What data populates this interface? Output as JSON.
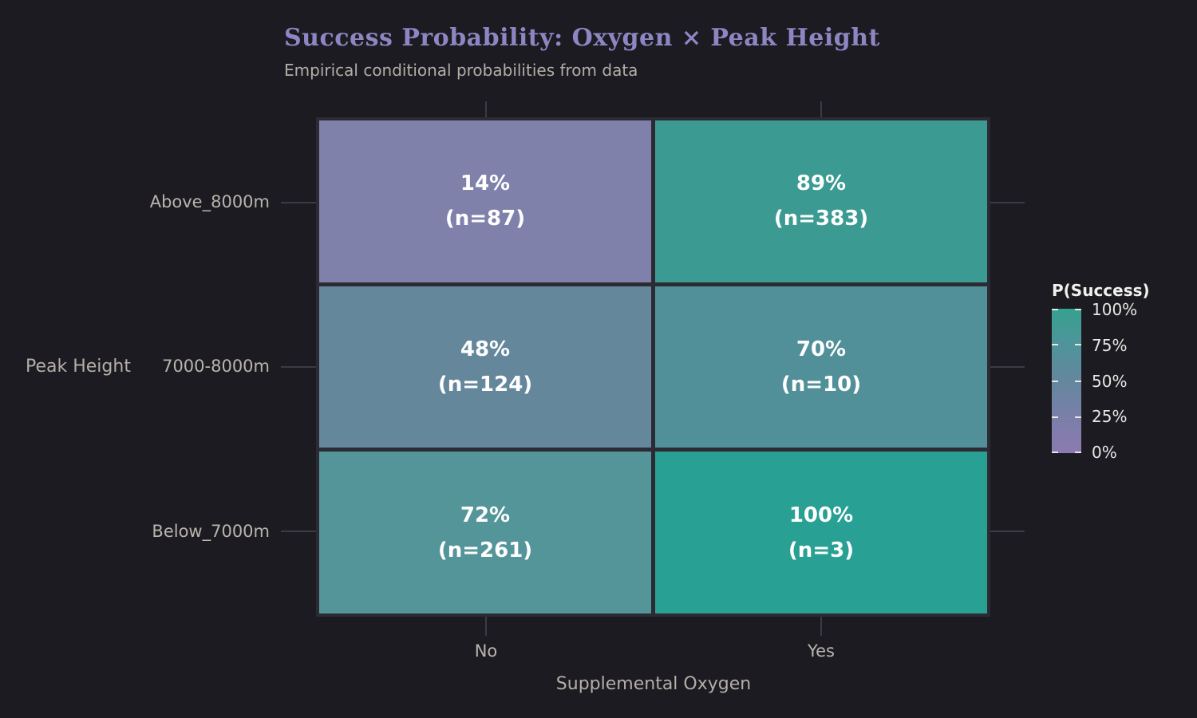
{
  "title": "Success Probability: Oxygen × Peak Height",
  "subtitle": "Empirical conditional probabilities from data",
  "colors": {
    "background": "#1c1b22",
    "gridline": "#3c3b43",
    "cell_border": "#2c2b33",
    "title": "#8d86c2",
    "subtitle": "#b3aea6",
    "axis_text": "#b9b4ac",
    "cell_text": "#ffffff"
  },
  "chart_data": {
    "type": "heatmap",
    "title": "Success Probability: Oxygen × Peak Height",
    "subtitle": "Empirical conditional probabilities from data",
    "xlabel": "Supplemental Oxygen",
    "ylabel": "Peak Height",
    "x_categories": [
      "No",
      "Yes"
    ],
    "y_categories": [
      "Above_8000m",
      "7000-8000m",
      "Below_7000m"
    ],
    "grid": "faint tick segments at category positions, panel margins only",
    "cells": [
      {
        "row": "Above_8000m",
        "col": "No",
        "pct": 14,
        "n": 87,
        "label": "14%",
        "sublabel": "(n=87)",
        "color": "#8081ab"
      },
      {
        "row": "Above_8000m",
        "col": "Yes",
        "pct": 89,
        "n": 383,
        "label": "89%",
        "sublabel": "(n=383)",
        "color": "#3b9b93"
      },
      {
        "row": "7000-8000m",
        "col": "No",
        "pct": 48,
        "n": 124,
        "label": "48%",
        "sublabel": "(n=124)",
        "color": "#64879c"
      },
      {
        "row": "7000-8000m",
        "col": "Yes",
        "pct": 70,
        "n": 10,
        "label": "70%",
        "sublabel": "(n=10)",
        "color": "#529099"
      },
      {
        "row": "Below_7000m",
        "col": "No",
        "pct": 72,
        "n": 261,
        "label": "72%",
        "sublabel": "(n=261)",
        "color": "#549599"
      },
      {
        "row": "Below_7000m",
        "col": "Yes",
        "pct": 100,
        "n": 3,
        "label": "100%",
        "sublabel": "(n=3)",
        "color": "#28a094"
      }
    ],
    "legend": {
      "title": "P(Success)",
      "position": "right",
      "tick_labels_top_to_bottom": [
        "100%",
        "75%",
        "50%",
        "25%",
        "0%"
      ],
      "gradient_top_to_bottom": [
        "#36a18e",
        "#4f949b",
        "#64879d",
        "#7a7fa9",
        "#8c7ab0"
      ],
      "range": [
        0,
        100
      ]
    }
  }
}
